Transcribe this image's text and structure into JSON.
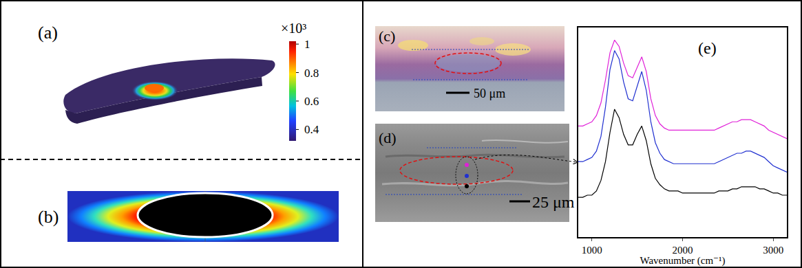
{
  "panels": {
    "a": {
      "label": "(a)",
      "colorbar": {
        "multiplier": "×10³",
        "range": [
          0.32,
          1.02
        ],
        "ticks": [
          0.4,
          0.6,
          0.8,
          1
        ]
      }
    },
    "b": {
      "label": "(b)"
    },
    "c": {
      "label": "(c)",
      "scale_bar": "50 μm"
    },
    "d": {
      "label": "(d)",
      "scale_bar": "25 μm"
    },
    "e": {
      "label": "(e)"
    }
  },
  "chart_data": {
    "type": "line",
    "xlabel": "Wavenumber (cm⁻¹)",
    "x": [
      850,
      900,
      950,
      1000,
      1050,
      1100,
      1150,
      1200,
      1250,
      1300,
      1350,
      1400,
      1450,
      1500,
      1550,
      1600,
      1650,
      1700,
      1750,
      1800,
      1850,
      1900,
      1950,
      2000,
      2050,
      2100,
      2150,
      2200,
      2250,
      2300,
      2350,
      2400,
      2450,
      2500,
      2550,
      2600,
      2650,
      2700,
      2750,
      2800,
      2850,
      2900,
      2950,
      3000,
      3050,
      3100,
      3150
    ],
    "series": [
      {
        "color": "#e020d8",
        "line_style": "solid",
        "values": [
          53,
          53,
          54,
          55,
          58,
          64,
          75,
          88,
          94,
          91,
          83,
          77,
          76,
          81,
          86,
          79,
          66,
          58,
          54,
          52,
          51,
          51,
          51,
          51,
          51,
          51,
          51,
          51,
          51,
          51,
          51,
          52,
          53,
          54,
          55,
          55,
          56,
          56,
          56,
          55,
          54,
          53,
          51,
          50,
          49,
          48,
          47
        ]
      },
      {
        "color": "#2030d0",
        "line_style": "solid",
        "values": [
          36,
          36,
          37,
          38,
          41,
          48,
          62,
          80,
          89,
          85,
          74,
          66,
          65,
          72,
          79,
          70,
          55,
          45,
          40,
          37,
          36,
          35,
          35,
          35,
          35,
          35,
          35,
          35,
          35,
          35,
          35,
          36,
          37,
          38,
          39,
          40,
          40,
          41,
          41,
          40,
          39,
          38,
          36,
          34,
          33,
          32,
          31
        ]
      },
      {
        "color": "#000000",
        "line_style": "solid",
        "values": [
          19,
          19,
          20,
          20,
          22,
          27,
          36,
          50,
          61,
          57,
          49,
          44,
          44,
          49,
          53,
          46,
          35,
          28,
          25,
          23,
          22,
          22,
          22,
          21,
          21,
          21,
          21,
          21,
          21,
          21,
          21,
          22,
          22,
          22,
          23,
          23,
          24,
          24,
          24,
          24,
          23,
          23,
          22,
          21,
          21,
          20,
          20
        ]
      }
    ],
    "xlim": [
      850,
      3150
    ],
    "xticks": [
      1000,
      2000,
      3000
    ],
    "ylim": [
      0,
      100
    ],
    "yticks": [],
    "tick_labels": "x",
    "grid": false
  }
}
